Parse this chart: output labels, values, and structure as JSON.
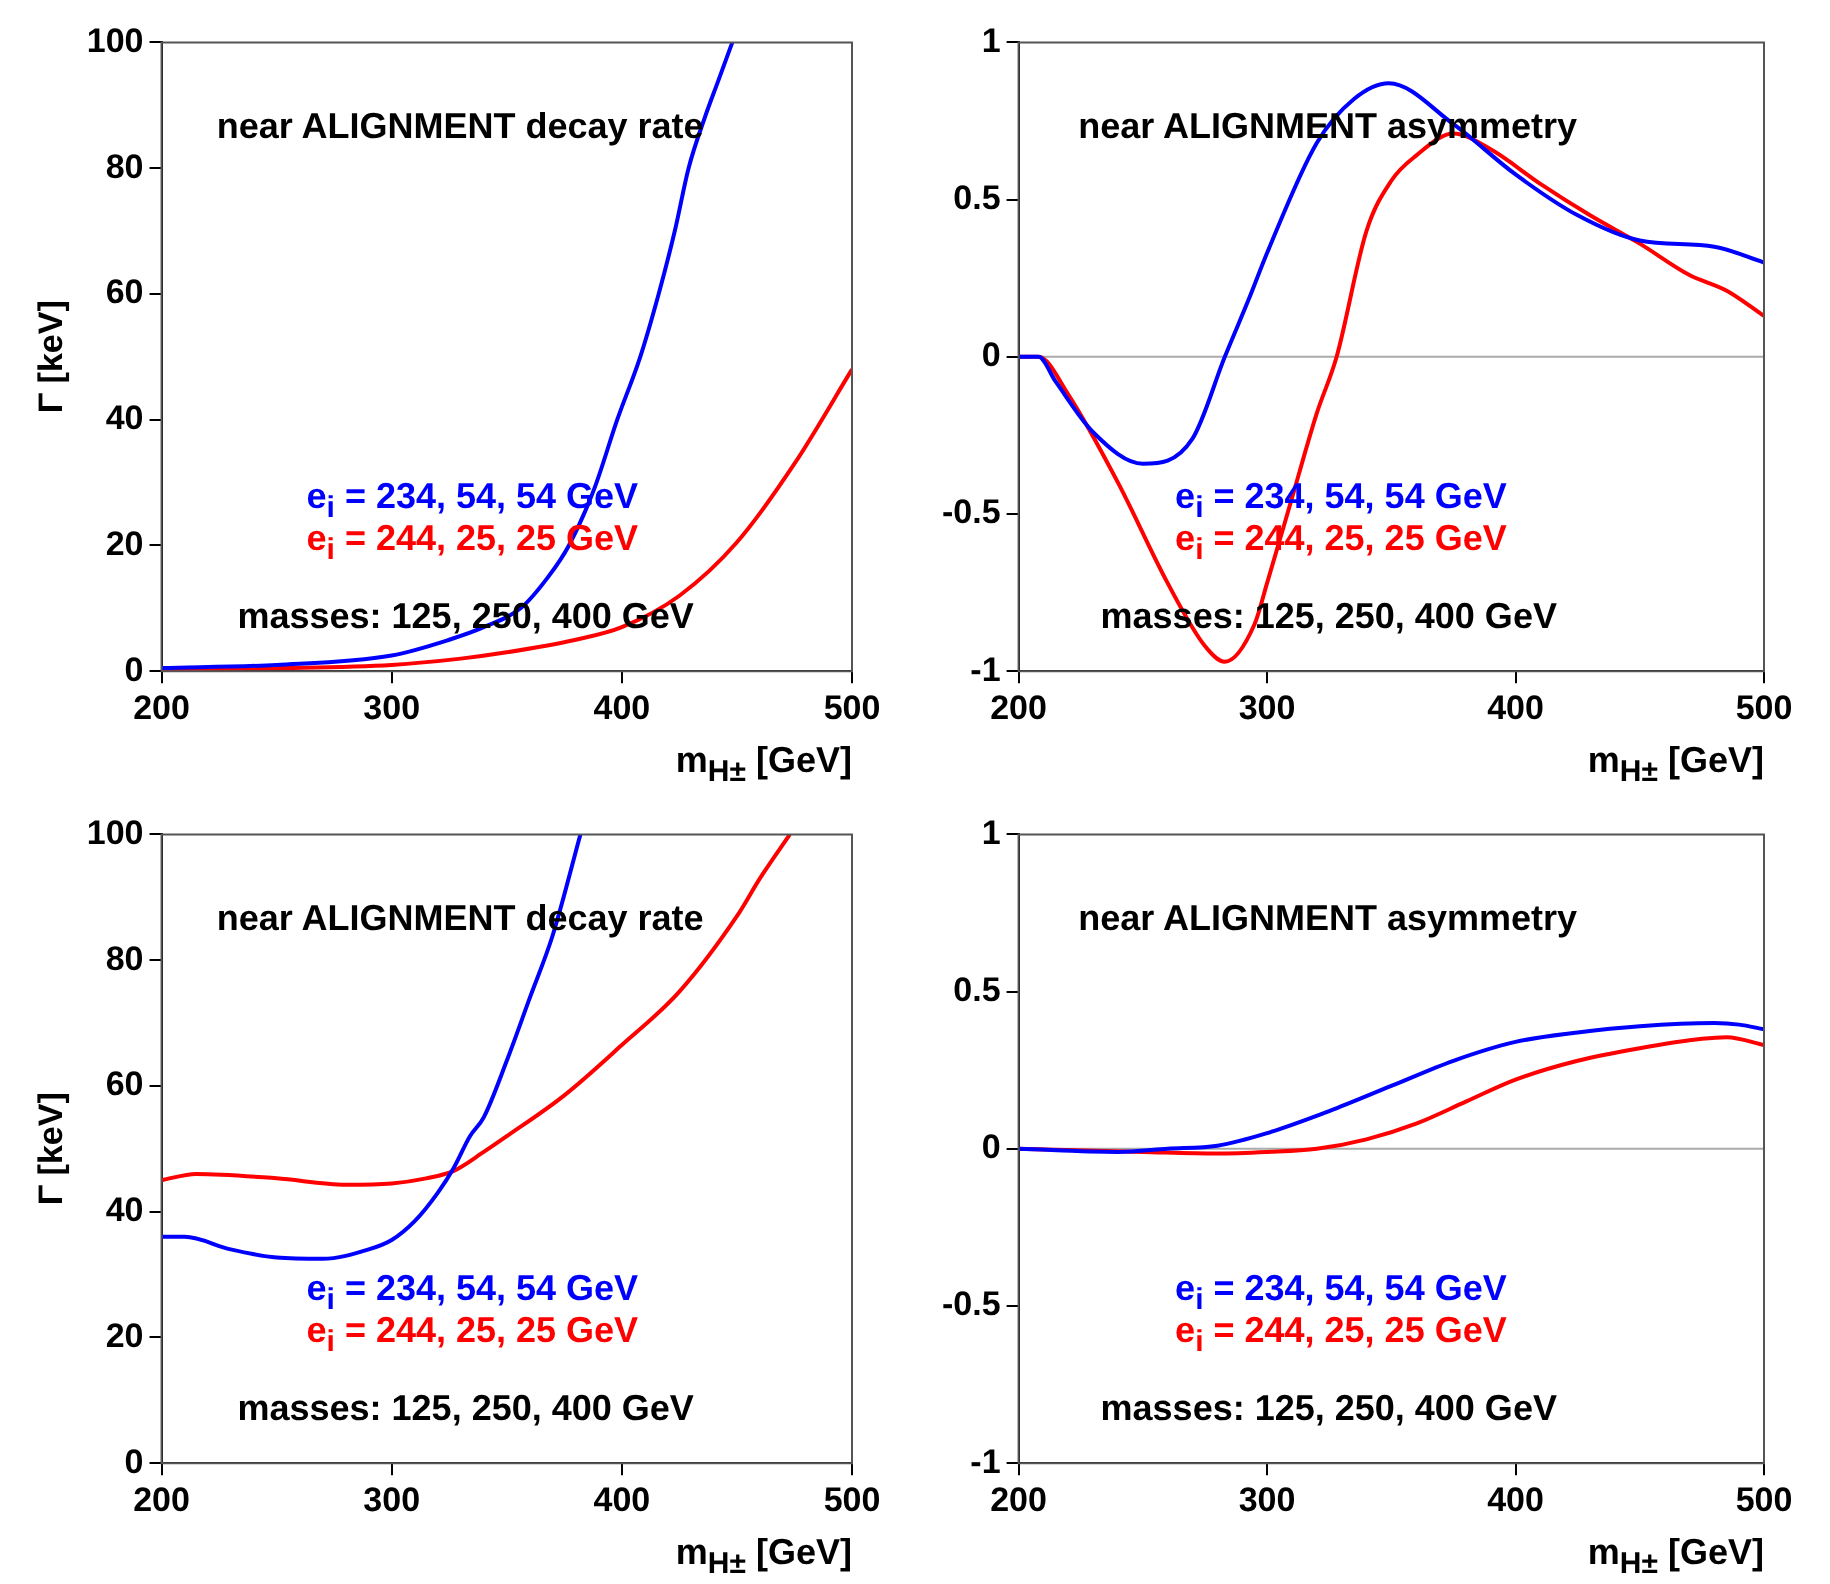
{
  "chart_data": [
    {
      "type": "line",
      "title": "near ALIGNMENT decay rate",
      "xlabel": "m$_{H±}$ [GeV]",
      "ylabel": "Γ [keV]",
      "xlim": [
        200,
        500
      ],
      "ylim": [
        0,
        100
      ],
      "xticks": [
        200,
        300,
        400,
        500
      ],
      "yticks": [
        0,
        20,
        40,
        60,
        80,
        100
      ],
      "annotations": [
        "masses: 125, 250, 400 GeV"
      ],
      "series": [
        {
          "name": "e$_{i}$ = 234, 54, 54 GeV",
          "color": "#0000ff",
          "x": [
            200,
            250,
            300,
            325,
            340,
            356,
            368,
            377,
            388,
            398,
            408,
            416,
            423,
            429,
            436,
            442,
            448
          ],
          "values": [
            0.5,
            1,
            2.5,
            5,
            7,
            10,
            15,
            20,
            29,
            40,
            50,
            60,
            70,
            80,
            88,
            94,
            100
          ]
        },
        {
          "name": "e$_{i}$ = 244, 25, 25 GeV",
          "color": "#ff0000",
          "x": [
            200,
            250,
            300,
            330,
            350,
            380,
            400,
            425,
            450,
            475,
            500
          ],
          "values": [
            0.3,
            0.5,
            1,
            2,
            3,
            5,
            7,
            12,
            20.5,
            33,
            48
          ]
        }
      ]
    },
    {
      "type": "line",
      "title": "near ALIGNMENT asymmetry",
      "xlabel": "m$_{H±}$ [GeV]",
      "xlim": [
        200,
        500
      ],
      "ylim": [
        -1,
        1
      ],
      "xticks": [
        200,
        300,
        400,
        500
      ],
      "yticks": [
        -1,
        -0.5,
        0,
        0.5,
        1
      ],
      "annotations": [
        "masses: 125, 250, 400 GeV"
      ],
      "ref_lines": [
        {
          "axis": "y",
          "value": 0,
          "color": "#aaaaaa"
        }
      ],
      "series": [
        {
          "name": "e$_{i}$ = 234, 54, 54 GeV",
          "color": "#0000ff",
          "x": [
            200,
            208,
            215,
            230,
            250,
            270,
            283,
            293,
            300,
            320,
            335,
            349,
            375,
            400,
            425,
            450,
            480,
            500
          ],
          "values": [
            0,
            0,
            -0.08,
            -0.24,
            -0.34,
            -0.26,
            0,
            0.19,
            0.33,
            0.68,
            0.82,
            0.87,
            0.74,
            0.58,
            0.45,
            0.37,
            0.35,
            0.3
          ]
        },
        {
          "name": "e$_{i}$ = 244, 25, 25 GeV",
          "color": "#ff0000",
          "x": [
            200,
            208,
            220,
            240,
            260,
            275,
            283,
            295,
            300,
            310,
            320,
            328,
            340,
            350,
            360,
            375,
            390,
            410,
            430,
            450,
            470,
            485,
            500
          ],
          "values": [
            0,
            0,
            -0.12,
            -0.4,
            -0.72,
            -0.92,
            -0.97,
            -0.85,
            -0.72,
            -0.45,
            -0.18,
            0,
            0.4,
            0.56,
            0.64,
            0.71,
            0.66,
            0.55,
            0.45,
            0.36,
            0.26,
            0.21,
            0.13
          ]
        }
      ]
    },
    {
      "type": "line",
      "title": "near ALIGNMENT decay rate",
      "xlabel": "m$_{H±}$ [GeV]",
      "ylabel": "Γ [keV]",
      "xlim": [
        200,
        500
      ],
      "ylim": [
        0,
        100
      ],
      "xticks": [
        200,
        300,
        400,
        500
      ],
      "yticks": [
        0,
        20,
        40,
        60,
        80,
        100
      ],
      "annotations": [
        "masses: 125, 250, 400 GeV"
      ],
      "series": [
        {
          "name": "e$_{i}$ = 234, 54, 54 GeV",
          "color": "#0000ff",
          "x": [
            200,
            210,
            230,
            250,
            270,
            290,
            300,
            310,
            320,
            327,
            334,
            340,
            350,
            360,
            370,
            382
          ],
          "values": [
            36,
            36,
            34,
            32.7,
            32.5,
            34,
            35.5,
            38.5,
            43,
            47,
            52,
            55,
            64,
            74,
            84,
            100
          ]
        },
        {
          "name": "e$_{i}$ = 244, 25, 25 GeV",
          "color": "#ff0000",
          "x": [
            200,
            215,
            250,
            280,
            300,
            315,
            327,
            340,
            350,
            375,
            400,
            425,
            450,
            460,
            473
          ],
          "values": [
            45,
            46,
            45.3,
            44.3,
            44.5,
            45.3,
            46.5,
            49.5,
            52,
            58.5,
            66.5,
            75,
            87,
            93,
            100
          ]
        }
      ]
    },
    {
      "type": "line",
      "title": "near ALIGNMENT asymmetry",
      "xlabel": "m$_{H±}$ [GeV]",
      "xlim": [
        200,
        500
      ],
      "ylim": [
        -1,
        1
      ],
      "xticks": [
        200,
        300,
        400,
        500
      ],
      "yticks": [
        -1,
        -0.5,
        0,
        0.5,
        1
      ],
      "annotations": [
        "masses: 125, 250, 400 GeV"
      ],
      "ref_lines": [
        {
          "axis": "y",
          "value": 0,
          "color": "#aaaaaa"
        }
      ],
      "series": [
        {
          "name": "e$_{i}$ = 234, 54, 54 GeV",
          "color": "#0000ff",
          "x": [
            200,
            240,
            260,
            280,
            300,
            325,
            350,
            375,
            400,
            425,
            450,
            480,
            490,
            500
          ],
          "values": [
            0,
            -0.01,
            0,
            0.01,
            0.05,
            0.12,
            0.2,
            0.28,
            0.34,
            0.37,
            0.39,
            0.4,
            0.395,
            0.38
          ]
        },
        {
          "name": "e$_{i}$ = 244, 25, 25 GeV",
          "color": "#ff0000",
          "x": [
            200,
            250,
            280,
            300,
            320,
            340,
            360,
            380,
            400,
            425,
            450,
            475,
            485,
            500
          ],
          "values": [
            0,
            -0.01,
            -0.015,
            -0.01,
            0,
            0.03,
            0.08,
            0.15,
            0.22,
            0.28,
            0.32,
            0.35,
            0.355,
            0.33
          ]
        }
      ]
    }
  ]
}
